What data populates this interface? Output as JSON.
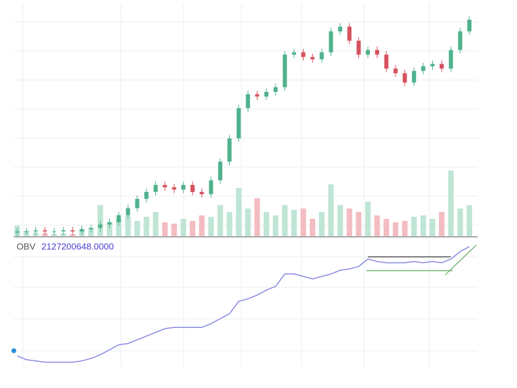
{
  "chart_data": [
    {
      "type": "candlestick",
      "open": [
        1.5,
        2,
        2,
        2.5,
        2,
        2,
        2.5,
        2,
        3,
        3.5,
        5,
        6,
        9,
        12,
        16,
        19,
        22,
        21,
        20,
        22,
        19,
        18,
        24,
        32,
        42,
        55,
        61,
        60,
        62,
        64,
        78,
        79,
        77,
        76,
        79,
        88,
        90,
        84,
        78,
        80,
        78,
        72,
        70,
        66,
        71,
        73,
        74,
        72,
        80,
        88
      ],
      "high": [
        3.5,
        3.5,
        4,
        4,
        3.5,
        4,
        4,
        4.5,
        5,
        6.5,
        7.5,
        10.5,
        13.5,
        17.5,
        20.5,
        23.5,
        23.5,
        22.5,
        23.5,
        23.5,
        20.5,
        25.5,
        33.5,
        43.5,
        56.5,
        62.5,
        62.5,
        63.5,
        65.5,
        79.5,
        80.5,
        80.5,
        78.5,
        80.5,
        89.5,
        91.5,
        91.5,
        85.5,
        81.5,
        81.5,
        79.5,
        73.5,
        71.5,
        72.5,
        74.5,
        75.5,
        75.5,
        81.5,
        89.5,
        94.5
      ],
      "low": [
        0,
        0.5,
        0.5,
        0.5,
        0.5,
        0.5,
        0.5,
        0.5,
        1.5,
        2,
        3.5,
        4.5,
        7.5,
        10.5,
        14.5,
        17.5,
        19.5,
        18.5,
        18.5,
        17.5,
        16.5,
        16.5,
        22.5,
        30.5,
        40.5,
        53.5,
        58.5,
        58.5,
        60.5,
        62.5,
        76.5,
        75.5,
        74.5,
        74.5,
        77.5,
        86.5,
        82.5,
        76.5,
        76.5,
        76.5,
        70.5,
        68.5,
        64.5,
        64.5,
        69.5,
        71.5,
        70.5,
        70.5,
        78.5,
        86.5
      ],
      "close": [
        2,
        2,
        2.5,
        2,
        2,
        2.5,
        2,
        3,
        3.5,
        5,
        6,
        9,
        12,
        16,
        19,
        22,
        21,
        20,
        22,
        19,
        18,
        24,
        32,
        42,
        55,
        61,
        60,
        62,
        64,
        78,
        79,
        77,
        76,
        79,
        88,
        90,
        84,
        78,
        80,
        78,
        72,
        70,
        66,
        71,
        73,
        74,
        72,
        80,
        88,
        93
      ],
      "volume": [
        15,
        8,
        5,
        4,
        3,
        4,
        3,
        10,
        12,
        45,
        20,
        25,
        30,
        22,
        28,
        35,
        20,
        18,
        25,
        22,
        30,
        28,
        45,
        35,
        70,
        40,
        55,
        35,
        30,
        45,
        38,
        40,
        25,
        35,
        75,
        45,
        40,
        35,
        50,
        30,
        25,
        20,
        22,
        28,
        30,
        25,
        35,
        95,
        40,
        45
      ],
      "ylim": [
        0,
        100
      ],
      "volume_lim": [
        0,
        100
      ],
      "up_color": "#4fb28c",
      "down_color": "#d6525e",
      "volume_up_color": "#bfe5d5",
      "volume_down_color": "#f3bcc1"
    },
    {
      "type": "line",
      "name": "OBV",
      "readout": "2127200648.0000",
      "values": [
        8,
        5,
        4,
        3,
        3,
        3,
        3,
        4,
        6,
        9,
        13,
        17,
        18,
        21,
        24,
        27,
        30,
        31,
        31,
        31,
        31,
        34,
        38,
        42,
        52,
        54,
        57,
        61,
        64,
        74,
        74,
        72,
        70,
        72,
        74,
        77,
        78,
        80,
        86,
        84,
        83,
        83,
        83,
        84,
        83,
        84,
        83,
        86,
        92,
        96
      ],
      "ylim": [
        0,
        100
      ],
      "color": "#8a8ae0",
      "readout_color": "#4a3fd0"
    }
  ]
}
